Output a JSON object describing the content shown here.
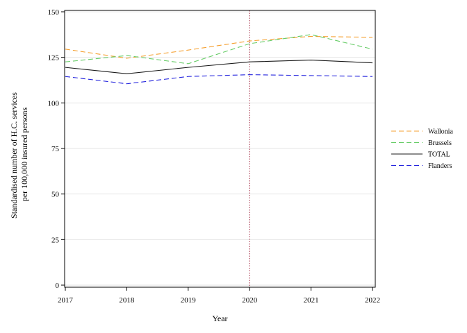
{
  "chart_data": {
    "type": "line",
    "title": "",
    "xlabel": "Year",
    "ylabel_lines": [
      "Standardised number of H.C. services",
      "per 100,000 insured persons"
    ],
    "x": [
      2017,
      2018,
      2019,
      2020,
      2021,
      2022
    ],
    "ylim": [
      0,
      150
    ],
    "yticks": [
      0,
      25,
      50,
      75,
      100,
      125,
      150
    ],
    "grid": "horizontal",
    "reference_line": {
      "x": 2020,
      "color": "#a0203a",
      "style": "dotted"
    },
    "legend_position": "right",
    "series": [
      {
        "name": "Wallonia",
        "color": "#f5a030",
        "dash": "dashed",
        "values": [
          129.5,
          124.5,
          129,
          134,
          136.5,
          136
        ]
      },
      {
        "name": "Brussels",
        "color": "#66cc66",
        "dash": "dashed",
        "values": [
          122.5,
          126,
          121.5,
          132.5,
          137.5,
          129.5
        ]
      },
      {
        "name": "TOTAL",
        "color": "#1a1a1a",
        "dash": "solid",
        "values": [
          119.5,
          116,
          119.5,
          122.5,
          123.5,
          122
        ]
      },
      {
        "name": "Flanders",
        "color": "#2222dd",
        "dash": "dashed",
        "values": [
          114.5,
          110.5,
          114.5,
          115.5,
          115,
          114.5
        ]
      }
    ]
  }
}
